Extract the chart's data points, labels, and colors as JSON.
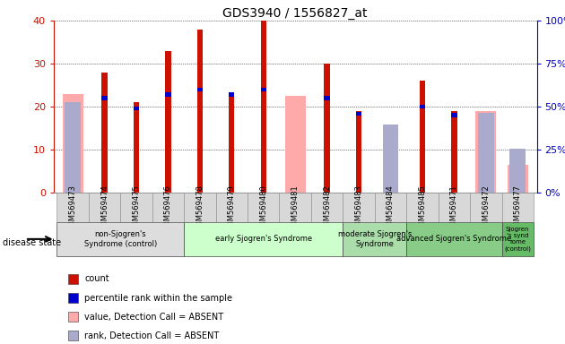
{
  "title": "GDS3940 / 1556827_at",
  "samples": [
    "GSM569473",
    "GSM569474",
    "GSM569475",
    "GSM569476",
    "GSM569478",
    "GSM569479",
    "GSM569480",
    "GSM569481",
    "GSM569482",
    "GSM569483",
    "GSM569484",
    "GSM569485",
    "GSM569471",
    "GSM569472",
    "GSM569477"
  ],
  "count": [
    0,
    28,
    21,
    33,
    38,
    23,
    40,
    0,
    30,
    19,
    0,
    26,
    19,
    0,
    0
  ],
  "percentile_rank_pct": [
    0,
    55,
    49,
    57,
    60,
    57,
    60,
    0,
    55,
    46,
    0,
    50,
    45,
    0,
    25
  ],
  "value_absent": [
    23,
    0,
    0,
    0,
    0,
    0,
    0,
    22.5,
    0,
    0,
    0,
    0,
    0,
    19,
    6.5
  ],
  "rank_absent_pct": [
    52,
    0,
    0,
    0,
    0,
    0,
    0,
    0,
    0,
    0,
    39,
    0,
    0,
    46,
    25
  ],
  "count_color": "#cc1100",
  "percentile_color": "#0000cc",
  "value_absent_color": "#ffaaaa",
  "rank_absent_color": "#aaaacc",
  "ylim_left": [
    0,
    40
  ],
  "ylim_right": [
    0,
    100
  ],
  "left_ticks": [
    0,
    10,
    20,
    30,
    40
  ],
  "right_ticks": [
    0,
    25,
    50,
    75,
    100
  ],
  "right_tick_labels": [
    "0%",
    "25%",
    "50%",
    "75%",
    "100%"
  ],
  "tick_color_left": "#cc1100",
  "tick_color_right": "#0000cc",
  "groups": [
    {
      "label": "non-Sjogren's\nSyndrome (control)",
      "start": 0,
      "end": 4,
      "color": "#dddddd"
    },
    {
      "label": "early Sjogren's Syndrome",
      "start": 4,
      "end": 9,
      "color": "#ccffcc"
    },
    {
      "label": "moderate Sjogren's\nSyndrome",
      "start": 9,
      "end": 11,
      "color": "#aaddaa"
    },
    {
      "label": "advanced Sjogren's Syndrome",
      "start": 11,
      "end": 14,
      "color": "#88cc88"
    },
    {
      "label": "Sjogren\n's synd\nrome\n(control)",
      "start": 14,
      "end": 15,
      "color": "#66bb66"
    }
  ],
  "disease_state_label": "disease state",
  "legend_items": [
    {
      "label": "count",
      "color": "#cc1100"
    },
    {
      "label": "percentile rank within the sample",
      "color": "#0000cc"
    },
    {
      "label": "value, Detection Call = ABSENT",
      "color": "#ffaaaa"
    },
    {
      "label": "rank, Detection Call = ABSENT",
      "color": "#aaaacc"
    }
  ]
}
